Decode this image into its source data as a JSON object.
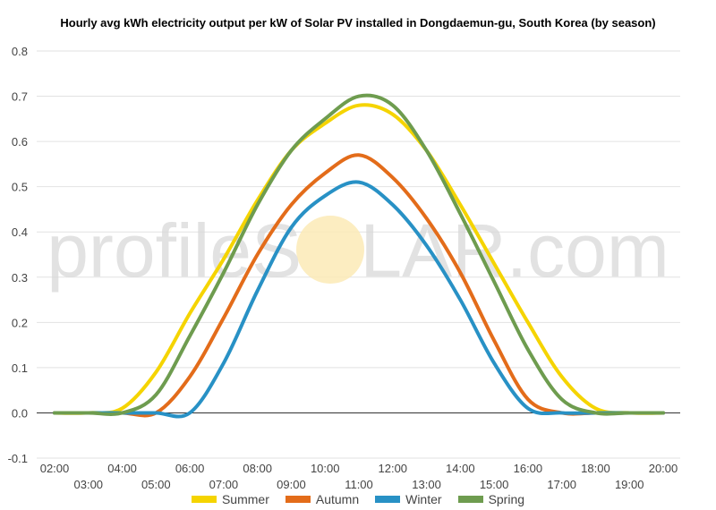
{
  "chart_data": {
    "type": "line",
    "title": "Hourly avg kWh electricity output per kW of Solar PV installed in Dongdaemun-gu, South Korea (by season)",
    "xlabel": "",
    "ylabel": "",
    "x": [
      "02:00",
      "03:00",
      "04:00",
      "05:00",
      "06:00",
      "07:00",
      "08:00",
      "09:00",
      "10:00",
      "11:00",
      "12:00",
      "13:00",
      "14:00",
      "15:00",
      "16:00",
      "17:00",
      "18:00",
      "19:00",
      "20:00"
    ],
    "ylim": [
      -0.1,
      0.8
    ],
    "yticks": [
      "-0.1",
      "0.0",
      "0.1",
      "0.2",
      "0.3",
      "0.4",
      "0.5",
      "0.6",
      "0.7",
      "0.8"
    ],
    "grid": true,
    "legend_position": "bottom",
    "series": [
      {
        "name": "Summer",
        "color": "#f5d400",
        "values": [
          0.0,
          0.0,
          0.01,
          0.09,
          0.22,
          0.34,
          0.47,
          0.58,
          0.64,
          0.68,
          0.66,
          0.58,
          0.46,
          0.33,
          0.2,
          0.08,
          0.01,
          0.0,
          0.0
        ]
      },
      {
        "name": "Autumn",
        "color": "#e36c1a",
        "values": [
          0.0,
          0.0,
          0.0,
          0.0,
          0.08,
          0.21,
          0.35,
          0.46,
          0.53,
          0.57,
          0.52,
          0.43,
          0.31,
          0.16,
          0.03,
          0.0,
          0.0,
          0.0,
          0.0
        ]
      },
      {
        "name": "Winter",
        "color": "#2891c5",
        "values": [
          0.0,
          0.0,
          0.0,
          0.0,
          0.0,
          0.11,
          0.27,
          0.41,
          0.48,
          0.51,
          0.46,
          0.37,
          0.25,
          0.11,
          0.01,
          0.0,
          0.0,
          0.0,
          0.0
        ]
      },
      {
        "name": "Spring",
        "color": "#6e9c4f",
        "values": [
          0.0,
          0.0,
          0.0,
          0.04,
          0.17,
          0.31,
          0.46,
          0.58,
          0.65,
          0.7,
          0.68,
          0.58,
          0.44,
          0.29,
          0.14,
          0.03,
          0.0,
          0.0,
          0.0
        ]
      }
    ]
  },
  "watermark": {
    "text_before": "profileS",
    "text_circle": "O",
    "text_after": "LAR.com",
    "color": "#d9d9d9",
    "sun_color": "#fbeab6"
  }
}
